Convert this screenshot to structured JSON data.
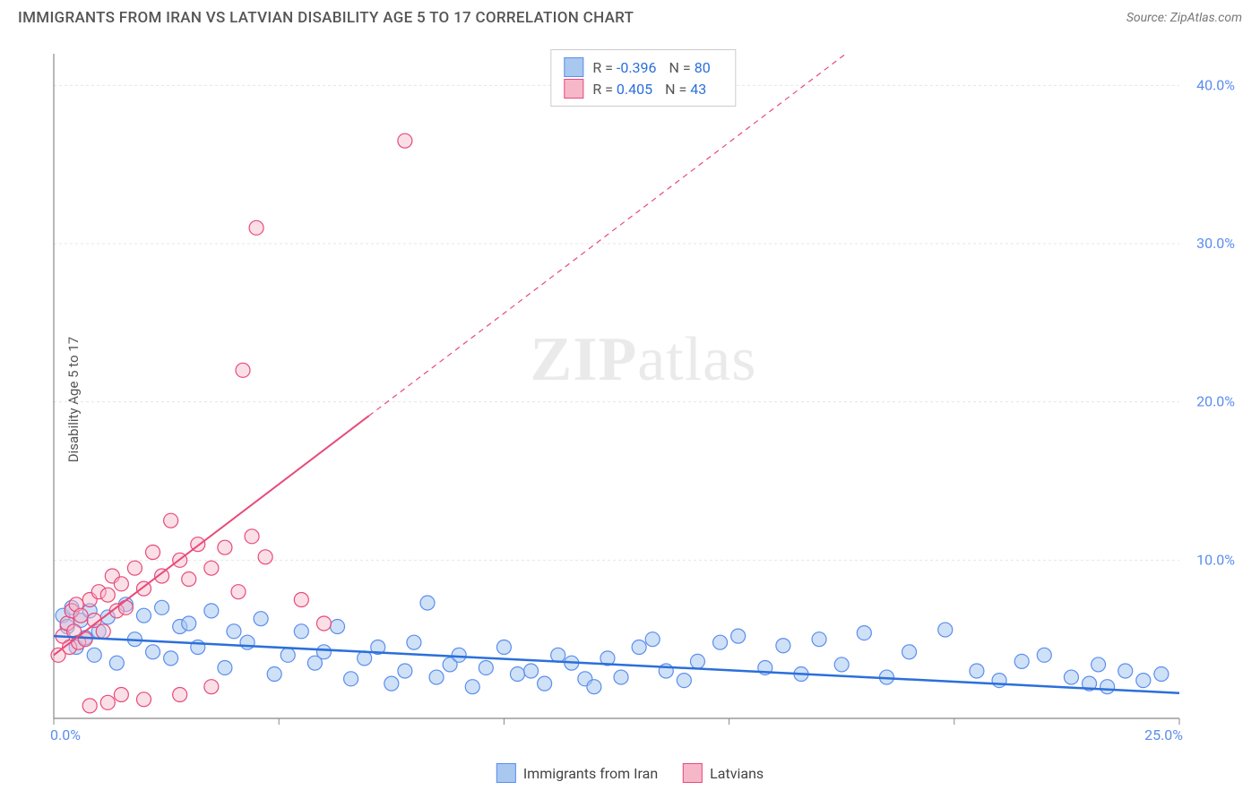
{
  "title": "IMMIGRANTS FROM IRAN VS LATVIAN DISABILITY AGE 5 TO 17 CORRELATION CHART",
  "source": "Source: ZipAtlas.com",
  "watermark_bold": "ZIP",
  "watermark_rest": "atlas",
  "ylabel": "Disability Age 5 to 17",
  "chart": {
    "type": "scatter",
    "xlim": [
      0,
      25
    ],
    "ylim": [
      0,
      42
    ],
    "x_ticks": [
      0,
      5,
      10,
      15,
      20,
      25
    ],
    "x_tick_labels": [
      "0.0%",
      "",
      "",
      "",
      "",
      "25.0%"
    ],
    "y_ticks": [
      10,
      20,
      30,
      40
    ],
    "y_tick_labels": [
      "10.0%",
      "20.0%",
      "30.0%",
      "40.0%"
    ],
    "grid_color": "#e5e5e5",
    "axis_color": "#888",
    "tick_label_color": "#5b8def",
    "background": "#ffffff",
    "marker_radius": 8,
    "series": [
      {
        "name": "Immigrants from Iran",
        "fill": "#a8c8f0",
        "stroke": "#5b8def",
        "fill_opacity": 0.55,
        "R": "-0.396",
        "N": "80",
        "trend": {
          "x1": 0,
          "y1": 5.2,
          "x2": 25,
          "y2": 1.6,
          "color": "#2b6fdb",
          "width": 2.5,
          "dash": ""
        },
        "points": [
          [
            0.2,
            6.5
          ],
          [
            0.3,
            5.8
          ],
          [
            0.4,
            7.0
          ],
          [
            0.5,
            4.5
          ],
          [
            0.6,
            6.2
          ],
          [
            0.7,
            5.1
          ],
          [
            0.8,
            6.8
          ],
          [
            0.9,
            4.0
          ],
          [
            1.0,
            5.5
          ],
          [
            1.2,
            6.4
          ],
          [
            1.4,
            3.5
          ],
          [
            1.6,
            7.2
          ],
          [
            1.8,
            5.0
          ],
          [
            2.0,
            6.5
          ],
          [
            2.2,
            4.2
          ],
          [
            2.4,
            7.0
          ],
          [
            2.6,
            3.8
          ],
          [
            2.8,
            5.8
          ],
          [
            3.0,
            6.0
          ],
          [
            3.2,
            4.5
          ],
          [
            3.5,
            6.8
          ],
          [
            3.8,
            3.2
          ],
          [
            4.0,
            5.5
          ],
          [
            4.3,
            4.8
          ],
          [
            4.6,
            6.3
          ],
          [
            4.9,
            2.8
          ],
          [
            5.2,
            4.0
          ],
          [
            5.5,
            5.5
          ],
          [
            5.8,
            3.5
          ],
          [
            6.0,
            4.2
          ],
          [
            6.3,
            5.8
          ],
          [
            6.6,
            2.5
          ],
          [
            6.9,
            3.8
          ],
          [
            7.2,
            4.5
          ],
          [
            7.5,
            2.2
          ],
          [
            7.8,
            3.0
          ],
          [
            8.0,
            4.8
          ],
          [
            8.3,
            7.3
          ],
          [
            8.5,
            2.6
          ],
          [
            8.8,
            3.4
          ],
          [
            9.0,
            4.0
          ],
          [
            9.3,
            2.0
          ],
          [
            9.6,
            3.2
          ],
          [
            10.0,
            4.5
          ],
          [
            10.3,
            2.8
          ],
          [
            10.6,
            3.0
          ],
          [
            10.9,
            2.2
          ],
          [
            11.2,
            4.0
          ],
          [
            11.5,
            3.5
          ],
          [
            11.8,
            2.5
          ],
          [
            12.0,
            2.0
          ],
          [
            12.3,
            3.8
          ],
          [
            12.6,
            2.6
          ],
          [
            13.0,
            4.5
          ],
          [
            13.3,
            5.0
          ],
          [
            13.6,
            3.0
          ],
          [
            14.0,
            2.4
          ],
          [
            14.3,
            3.6
          ],
          [
            14.8,
            4.8
          ],
          [
            15.2,
            5.2
          ],
          [
            15.8,
            3.2
          ],
          [
            16.2,
            4.6
          ],
          [
            16.6,
            2.8
          ],
          [
            17.0,
            5.0
          ],
          [
            17.5,
            3.4
          ],
          [
            18.0,
            5.4
          ],
          [
            18.5,
            2.6
          ],
          [
            19.0,
            4.2
          ],
          [
            19.8,
            5.6
          ],
          [
            20.5,
            3.0
          ],
          [
            21.0,
            2.4
          ],
          [
            21.5,
            3.6
          ],
          [
            22.0,
            4.0
          ],
          [
            22.6,
            2.6
          ],
          [
            23.0,
            2.2
          ],
          [
            23.2,
            3.4
          ],
          [
            23.4,
            2.0
          ],
          [
            23.8,
            3.0
          ],
          [
            24.2,
            2.4
          ],
          [
            24.6,
            2.8
          ]
        ]
      },
      {
        "name": "Latvians",
        "fill": "#f6b8c9",
        "stroke": "#e84a7a",
        "fill_opacity": 0.45,
        "R": "0.405",
        "N": "43",
        "trend": {
          "x1": 0,
          "y1": 4.0,
          "x2": 25,
          "y2": 58,
          "color": "#e84a7a",
          "width": 2,
          "dash": "6,5",
          "solid_until_x": 7.0
        },
        "points": [
          [
            0.1,
            4.0
          ],
          [
            0.2,
            5.2
          ],
          [
            0.3,
            6.0
          ],
          [
            0.35,
            4.5
          ],
          [
            0.4,
            6.8
          ],
          [
            0.45,
            5.5
          ],
          [
            0.5,
            7.2
          ],
          [
            0.55,
            4.8
          ],
          [
            0.6,
            6.5
          ],
          [
            0.7,
            5.0
          ],
          [
            0.8,
            7.5
          ],
          [
            0.9,
            6.2
          ],
          [
            1.0,
            8.0
          ],
          [
            1.1,
            5.5
          ],
          [
            1.2,
            7.8
          ],
          [
            1.3,
            9.0
          ],
          [
            1.4,
            6.8
          ],
          [
            1.5,
            8.5
          ],
          [
            1.6,
            7.0
          ],
          [
            1.8,
            9.5
          ],
          [
            2.0,
            8.2
          ],
          [
            2.2,
            10.5
          ],
          [
            2.4,
            9.0
          ],
          [
            2.6,
            12.5
          ],
          [
            2.8,
            10.0
          ],
          [
            3.0,
            8.8
          ],
          [
            3.2,
            11.0
          ],
          [
            3.5,
            9.5
          ],
          [
            3.8,
            10.8
          ],
          [
            4.1,
            8.0
          ],
          [
            4.4,
            11.5
          ],
          [
            4.7,
            10.2
          ],
          [
            2.8,
            1.5
          ],
          [
            3.5,
            2.0
          ],
          [
            1.2,
            1.0
          ],
          [
            0.8,
            0.8
          ],
          [
            1.5,
            1.5
          ],
          [
            2.0,
            1.2
          ],
          [
            4.2,
            22.0
          ],
          [
            4.5,
            31.0
          ],
          [
            7.8,
            36.5
          ],
          [
            5.5,
            7.5
          ],
          [
            6.0,
            6.0
          ]
        ]
      }
    ]
  },
  "legend_bottom": [
    {
      "label": "Immigrants from Iran",
      "fill": "#a8c8f0",
      "stroke": "#5b8def"
    },
    {
      "label": "Latvians",
      "fill": "#f6b8c9",
      "stroke": "#e84a7a"
    }
  ]
}
